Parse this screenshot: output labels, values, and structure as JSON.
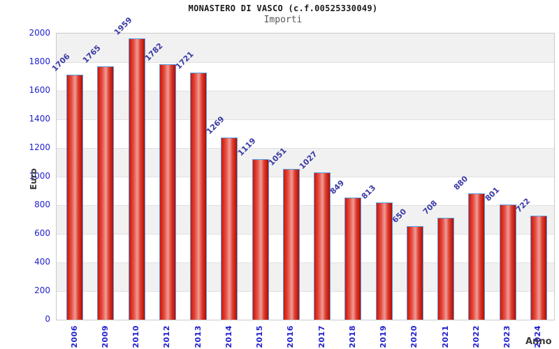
{
  "header": {
    "title": "MONASTERO DI VASCO (c.f.00525330049)",
    "subtitle": "Importi"
  },
  "chart_data": {
    "type": "bar",
    "title": "MONASTERO DI VASCO (c.f.00525330049)",
    "subtitle": "Importi",
    "categories": [
      "2006",
      "2009",
      "2010",
      "2012",
      "2013",
      "2014",
      "2015",
      "2016",
      "2017",
      "2018",
      "2019",
      "2020",
      "2021",
      "2022",
      "2023",
      "2024"
    ],
    "values": [
      1706,
      1765,
      1959,
      1782,
      1721,
      1269,
      1119,
      1051,
      1027,
      849,
      813,
      650,
      708,
      880,
      801,
      722
    ],
    "xlabel": "Anno",
    "ylabel": "Euro",
    "ylim": [
      0,
      2000
    ],
    "yticks": [
      0,
      200,
      400,
      600,
      800,
      1000,
      1200,
      1400,
      1600,
      1800,
      2000
    ],
    "grid": "horizontal gridlines every 200 with alternating gray/white bands",
    "legend": "none",
    "bar_value_labels_rotation_deg": -45,
    "x_tick_rotation_deg": -90
  },
  "colors": {
    "bar_fill_edge": "#d21405",
    "bar_fill_highlight": "#f09c96",
    "bar_fill_dark_edge": "#b50b00",
    "bar_border": "#55a0e4",
    "tick_label": "#2121cd",
    "value_label": "#3a3aa6",
    "band_gray": "#f1f1f1",
    "band_white": "#ffffff",
    "gridline": "#e0e0e0",
    "plot_border": "#c9c9c9",
    "axis_title": "#3b3b3b",
    "title": "#1a1a1a",
    "subtitle": "#575757"
  }
}
